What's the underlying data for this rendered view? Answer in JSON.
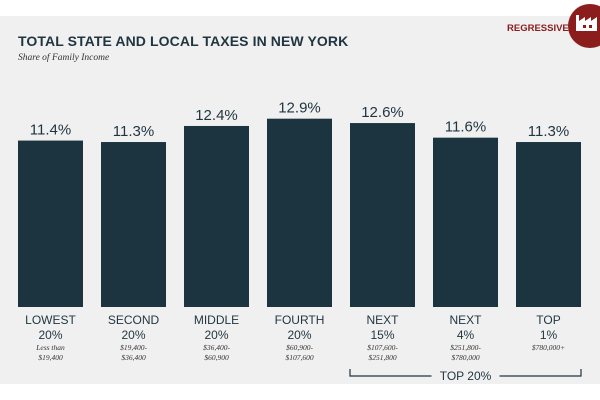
{
  "badge": {
    "label": "REGRESSIVE",
    "icon": "factory-icon",
    "color": "#8c1d1d"
  },
  "chart_data": {
    "type": "bar",
    "title": "TOTAL STATE AND LOCAL TAXES IN NEW YORK",
    "subtitle": "Share of Family Income",
    "xlabel": "",
    "ylabel": "",
    "ylim": [
      0,
      13.7
    ],
    "bar_color": "#1b3440",
    "unit": "%",
    "categories": [
      {
        "line1": "LOWEST",
        "line2": "20%",
        "range1": "Less than",
        "range2": "$19,400"
      },
      {
        "line1": "SECOND",
        "line2": "20%",
        "range1": "$19,400-",
        "range2": "$36,400"
      },
      {
        "line1": "MIDDLE",
        "line2": "20%",
        "range1": "$36,400-",
        "range2": "$60,900"
      },
      {
        "line1": "FOURTH",
        "line2": "20%",
        "range1": "$60,900-",
        "range2": "$107,600"
      },
      {
        "line1": "NEXT",
        "line2": "15%",
        "range1": "$107,600-",
        "range2": "$251,800"
      },
      {
        "line1": "NEXT",
        "line2": "4%",
        "range1": "$251,800-",
        "range2": "$780,000"
      },
      {
        "line1": "TOP",
        "line2": "1%",
        "range1": "$780,000+",
        "range2": ""
      }
    ],
    "values": [
      11.4,
      11.3,
      12.4,
      12.9,
      12.6,
      11.6,
      11.3
    ],
    "value_labels": [
      "11.4%",
      "11.3%",
      "12.4%",
      "12.9%",
      "12.6%",
      "11.6%",
      "11.3%"
    ],
    "bracket": {
      "label": "TOP 20%",
      "from_index": 4,
      "to_index": 6
    }
  }
}
